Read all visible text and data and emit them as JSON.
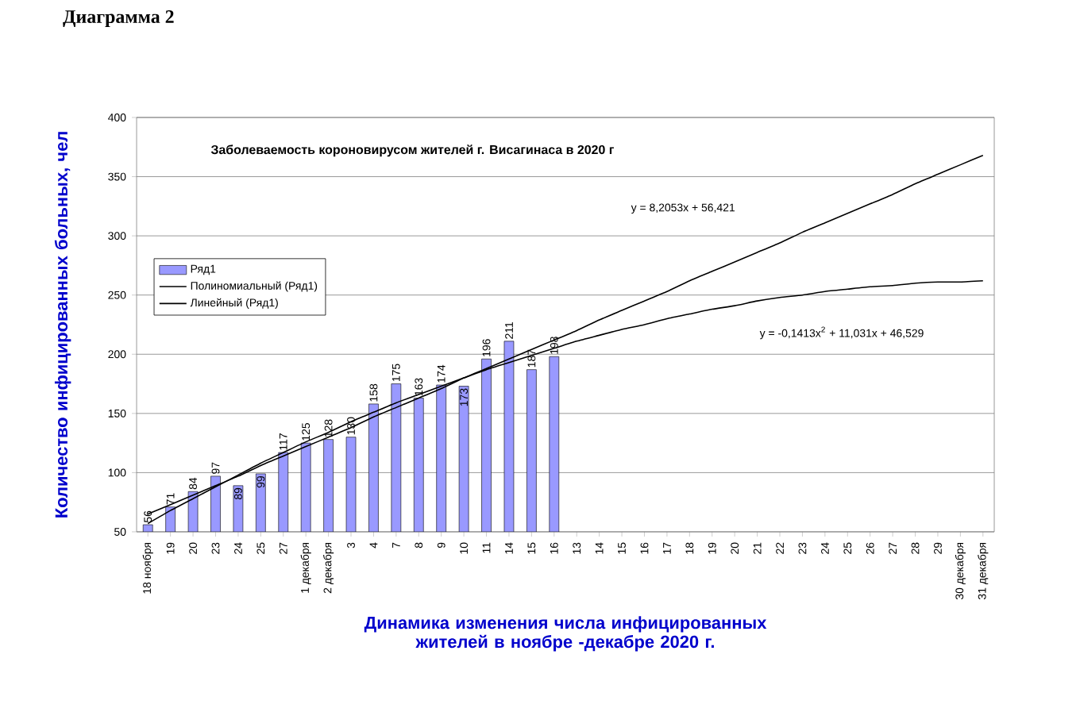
{
  "chart_data": {
    "type": "bar",
    "title": "Диаграмма 2",
    "subtitle": "Заболеваемость короновирусом жителей г. Висагинаса в 2020 г",
    "xlabel": "Динамика изменения числа инфицированных жителей в ноябре -декабре 2020 г.",
    "ylabel": "Количество инфицированных больных, чел",
    "categories": [
      "18 ноября",
      "19",
      "20",
      "23",
      "24",
      "25",
      "27",
      "1 декабря",
      "2 декабря",
      "3",
      "4",
      "7",
      "8",
      "9",
      "10",
      "11",
      "14",
      "15",
      "16",
      "13",
      "14",
      "15",
      "16",
      "17",
      "18",
      "19",
      "20",
      "21",
      "22",
      "23",
      "24",
      "25",
      "26",
      "27",
      "28",
      "29",
      "30 декабря",
      "31 декабря"
    ],
    "series": [
      {
        "name": "Ряд1",
        "color": "#9999ff",
        "data_labels": true,
        "values": [
          56,
          71,
          84,
          97,
          89,
          99,
          117,
          125,
          128,
          130,
          158,
          175,
          163,
          174,
          173,
          196,
          211,
          187,
          198,
          null,
          null,
          null,
          null,
          null,
          null,
          null,
          null,
          null,
          null,
          null,
          null,
          null,
          null,
          null,
          null,
          null,
          null,
          null
        ]
      },
      {
        "name": "Полиномиальный (Ряд1)",
        "type": "line",
        "color": "#000000",
        "values": [
          57,
          68,
          78,
          88,
          98,
          108,
          117,
          126,
          134,
          143,
          151,
          159,
          166,
          173,
          180,
          187,
          193,
          199,
          205,
          211,
          216,
          221,
          225,
          230,
          234,
          238,
          241,
          245,
          248,
          250,
          253,
          255,
          257,
          258,
          260,
          261,
          261,
          262
        ]
      },
      {
        "name": "Линейный (Ряд1)",
        "type": "line",
        "color": "#000000",
        "values": [
          65,
          73,
          81,
          89,
          97,
          106,
          114,
          122,
          130,
          138,
          147,
          155,
          163,
          171,
          180,
          188,
          196,
          204,
          212,
          220,
          229,
          237,
          245,
          253,
          262,
          270,
          278,
          286,
          294,
          303,
          311,
          319,
          327,
          335,
          344,
          352,
          360,
          368
        ]
      }
    ],
    "annotations": [
      "y = 8,2053x + 56,421",
      "y = -0,1413x$^{2}$ + 11,031x + 46,529"
    ],
    "ylim": [
      50,
      400
    ],
    "yticks": [
      50,
      100,
      150,
      200,
      250,
      300,
      350,
      400
    ],
    "grid": "y",
    "legend": "left",
    "marker": "none",
    "line_style": "solid"
  }
}
